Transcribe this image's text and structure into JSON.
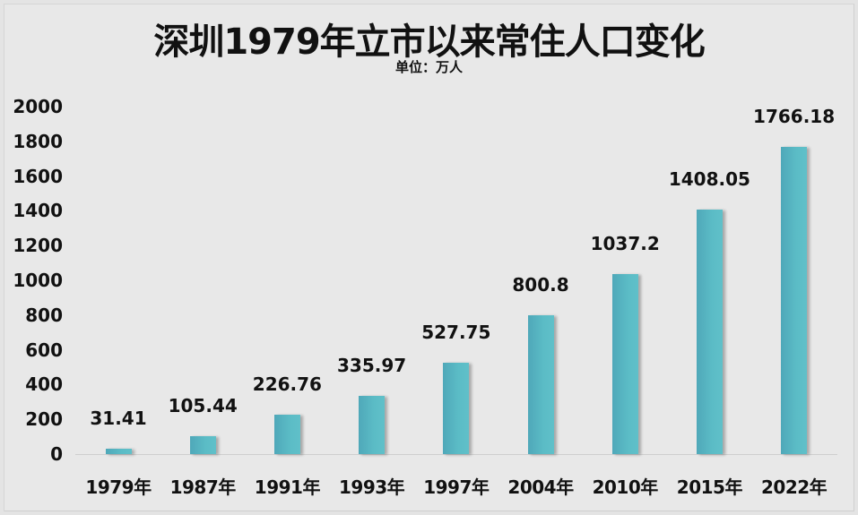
{
  "chart_data": {
    "type": "bar",
    "title": "深圳1979年立市以来常住人口变化",
    "subtitle": "单位：万人",
    "xlabel": "",
    "ylabel": "",
    "categories": [
      "1979年",
      "1987年",
      "1991年",
      "1993年",
      "1997年",
      "2004年",
      "2010年",
      "2015年",
      "2022年"
    ],
    "values": [
      31.41,
      105.44,
      226.76,
      335.97,
      527.75,
      800.8,
      1037.2,
      1408.05,
      1766.18
    ],
    "value_labels": [
      "31.41",
      "105.44",
      "226.76",
      "335.97",
      "527.75",
      "800.8",
      "1037.2",
      "1408.05",
      "1766.18"
    ],
    "ylim": [
      0,
      2000
    ],
    "yticks": [
      "0",
      "200",
      "400",
      "600",
      "800",
      "1000",
      "1200",
      "1400",
      "1600",
      "1800",
      "2000"
    ],
    "grid": false,
    "legend": "none",
    "bar_color": "#5bb8c4",
    "background_color": "#e8e8e8"
  }
}
